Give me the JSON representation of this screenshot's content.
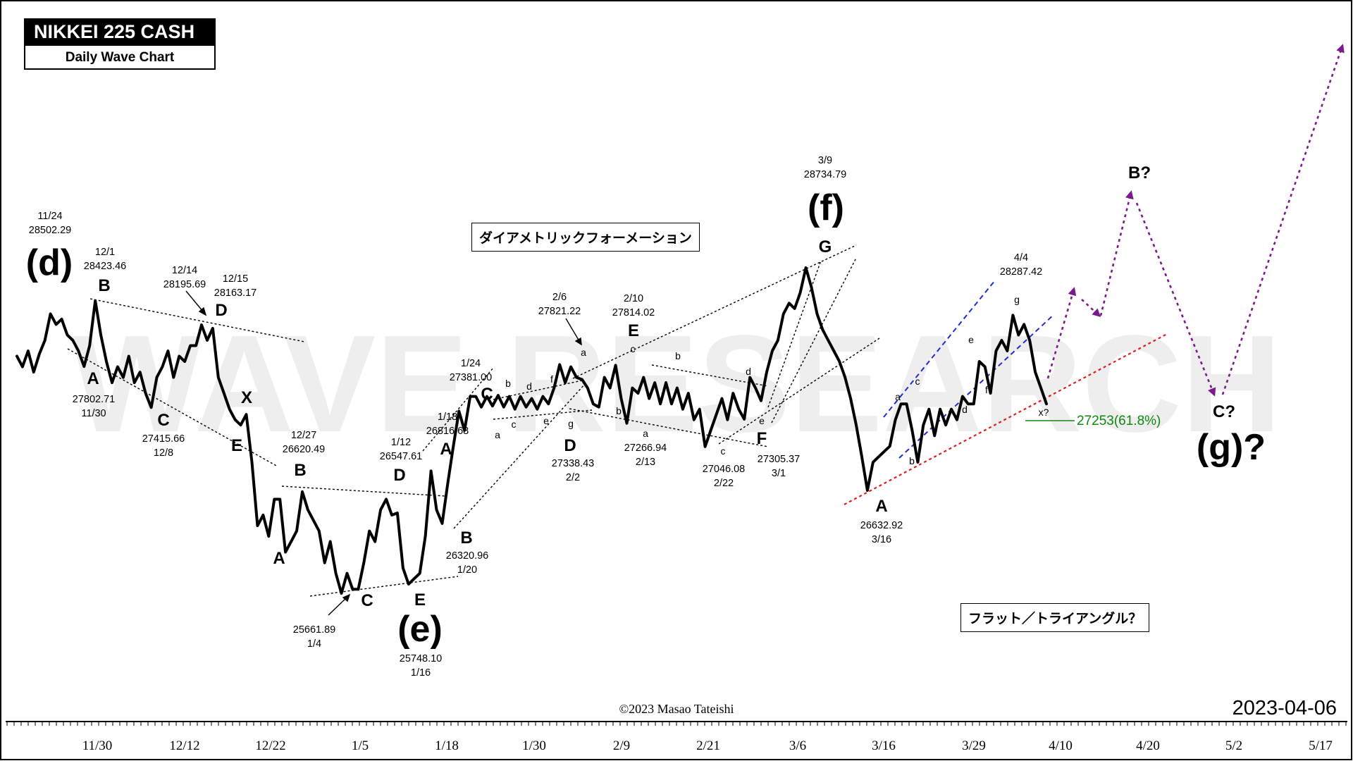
{
  "header": {
    "title": "NIKKEI 225 CASH",
    "subtitle": "Daily Wave Chart"
  },
  "watermark": "WAVE RESEARCH",
  "annotation_boxes": {
    "diametric": "ダイアメトリックフォーメーション",
    "flat_triangle": "フラット／トライアングル？"
  },
  "footer": {
    "copyright": "©2023 Masao Tateishi",
    "date": "2023-04-06"
  },
  "colors": {
    "price_line": "#000000",
    "blue_channel": "#1f2bd6",
    "red_support": "#e02020",
    "projection": "#7a1a8c",
    "fib_text": "#118811"
  },
  "chart_data": {
    "type": "line",
    "x_ticks": [
      "11/30",
      "12/12",
      "12/22",
      "1/5",
      "1/18",
      "1/30",
      "2/9",
      "2/21",
      "3/6",
      "3/16",
      "3/29",
      "4/10",
      "4/20",
      "5/2",
      "5/17"
    ],
    "ylim": [
      25200,
      29700
    ],
    "series": [
      {
        "values": [
          27900,
          27800,
          27950,
          27750,
          27920,
          28050,
          28300,
          28200,
          28250,
          28100,
          28050,
          27950,
          27802.71,
          28000,
          28423.46,
          28100,
          27850,
          27650,
          27800,
          27700,
          27900,
          27650,
          27750,
          27550,
          27415.66,
          27700,
          27800,
          27950,
          27700,
          27900,
          27850,
          28000,
          28000,
          28195.69,
          28050,
          28163.17,
          27700,
          27550,
          27400,
          27300,
          27250,
          27350,
          26900,
          26300,
          26400,
          26200,
          26550,
          26550,
          26050,
          26150,
          26250,
          26620.49,
          26450,
          26350,
          26250,
          25950,
          26150,
          25850,
          25661.89,
          25850,
          25700,
          25700,
          25950,
          26250,
          26150,
          26450,
          26550,
          26400,
          26420,
          25900,
          25748.1,
          25800,
          25850,
          26200,
          26816.68,
          26450,
          26320.96,
          26700,
          27050,
          27381.0,
          27200,
          27520,
          27520,
          27420,
          27520,
          27430,
          27530,
          27420,
          27520,
          27400,
          27520,
          27420,
          27500,
          27400,
          27520,
          27450,
          27600,
          27821.22,
          27650,
          27800,
          27700,
          27680,
          27600,
          27450,
          27420,
          27700,
          27600,
          27814.02,
          27500,
          27266.94,
          27600,
          27550,
          27700,
          27500,
          27650,
          27450,
          27650,
          27450,
          27600,
          27400,
          27550,
          27300,
          27400,
          27046.08,
          27200,
          27350,
          27500,
          27300,
          27550,
          27400,
          27305.37,
          27700,
          27600,
          27480,
          27750,
          27950,
          28050,
          28300,
          28400,
          28350,
          28500,
          28734.79,
          28550,
          28300,
          28150,
          28050,
          27950,
          27850,
          27700,
          27500,
          27250,
          26950,
          26632.92,
          26900,
          26950,
          27000,
          27050,
          27300,
          27450,
          27450,
          27200,
          26900,
          27250,
          27400,
          27150,
          27400,
          27250,
          27400,
          27300,
          27520,
          27450,
          27450,
          27850,
          27800,
          27550,
          27950,
          28050,
          27950,
          28287.42,
          28100,
          28200,
          28050,
          27750,
          27600,
          27450
        ]
      }
    ],
    "wave_labels": [
      "(d)",
      "(e)",
      "(f)",
      "(g)?",
      "A",
      "B",
      "C",
      "D",
      "E",
      "F",
      "G",
      "X",
      "B?",
      "C?",
      "a",
      "b",
      "c",
      "d",
      "e",
      "f",
      "g",
      "x?"
    ],
    "price_annotations": [
      {
        "date": "11/24",
        "value": "28502.29"
      },
      {
        "date": "12/1",
        "value": "28423.46"
      },
      {
        "date": "12/14",
        "value": "28195.69"
      },
      {
        "date": "12/15",
        "value": "28163.17"
      },
      {
        "date": "11/30",
        "value": "27802.71"
      },
      {
        "date": "12/8",
        "value": "27415.66"
      },
      {
        "date": "12/27",
        "value": "26620.49"
      },
      {
        "date": "1/4",
        "value": "25661.89"
      },
      {
        "date": "1/12",
        "value": "26547.61"
      },
      {
        "date": "1/16",
        "value": "25748.10"
      },
      {
        "date": "1/18",
        "value": "26816.68"
      },
      {
        "date": "1/20",
        "value": "26320.96"
      },
      {
        "date": "1/24",
        "value": "27381.00"
      },
      {
        "date": "2/2",
        "value": "27338.43"
      },
      {
        "date": "2/6",
        "value": "27821.22"
      },
      {
        "date": "2/10",
        "value": "27814.02"
      },
      {
        "date": "2/13",
        "value": "27266.94"
      },
      {
        "date": "2/22",
        "value": "27046.08"
      },
      {
        "date": "3/1",
        "value": "27305.37"
      },
      {
        "date": "3/9",
        "value": "28734.79"
      },
      {
        "date": "3/16",
        "value": "26632.92"
      },
      {
        "date": "4/4",
        "value": "28287.42"
      }
    ],
    "fib_level": "27253(61.8%)"
  }
}
